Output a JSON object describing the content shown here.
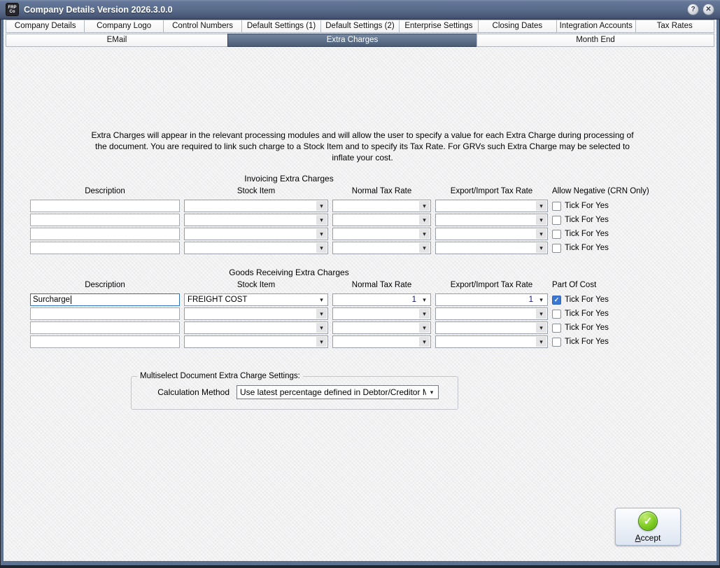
{
  "window": {
    "title": "Company Details Version 2026.3.0.0",
    "icon_line1": "FRP",
    "icon_line2": "Co",
    "help_glyph": "?",
    "close_glyph": "✕"
  },
  "tabs": {
    "row1": [
      "Company Details",
      "Company Logo",
      "Control Numbers",
      "Default Settings (1)",
      "Default Settings (2)",
      "Enterprise Settings",
      "Closing Dates",
      "Integration Accounts",
      "Tax Rates"
    ],
    "row2": [
      "EMail",
      "Extra Charges",
      "Month End"
    ],
    "selected": "Extra Charges"
  },
  "intro": "Extra Charges will appear in the relevant processing modules and will allow the user to specify a value for each Extra Charge during processing of the document. You are required to link such charge to a Stock Item and to specify its Tax Rate. For GRVs such Extra Charge may be selected to inflate your cost.",
  "invoicing": {
    "title": "Invoicing Extra Charges",
    "headers": [
      "Description",
      "Stock Item",
      "Normal Tax Rate",
      "Export/Import Tax Rate",
      "Allow Negative (CRN Only)"
    ],
    "checkbox_label": "Tick For Yes",
    "rows": [
      {
        "description": "",
        "stock_item": "",
        "normal_tax_rate": "",
        "export_import_tax_rate": "",
        "checked": false,
        "focused": false
      },
      {
        "description": "",
        "stock_item": "",
        "normal_tax_rate": "",
        "export_import_tax_rate": "",
        "checked": false,
        "focused": false
      },
      {
        "description": "",
        "stock_item": "",
        "normal_tax_rate": "",
        "export_import_tax_rate": "",
        "checked": false,
        "focused": false
      },
      {
        "description": "",
        "stock_item": "",
        "normal_tax_rate": "",
        "export_import_tax_rate": "",
        "checked": false,
        "focused": false
      }
    ]
  },
  "goods": {
    "title": "Goods Receiving Extra Charges",
    "headers": [
      "Description",
      "Stock Item",
      "Normal Tax Rate",
      "Export/Import Tax Rate",
      "Part Of Cost"
    ],
    "checkbox_label": "Tick For Yes",
    "rows": [
      {
        "description": "Surcharge",
        "stock_item": "FREIGHT COST",
        "normal_tax_rate": "1",
        "export_import_tax_rate": "1",
        "checked": true,
        "focused": true
      },
      {
        "description": "",
        "stock_item": "",
        "normal_tax_rate": "",
        "export_import_tax_rate": "",
        "checked": false,
        "focused": false
      },
      {
        "description": "",
        "stock_item": "",
        "normal_tax_rate": "",
        "export_import_tax_rate": "",
        "checked": false,
        "focused": false
      },
      {
        "description": "",
        "stock_item": "",
        "normal_tax_rate": "",
        "export_import_tax_rate": "",
        "checked": false,
        "focused": false
      }
    ]
  },
  "multiselect": {
    "group_title": "Multiselect Document Extra Charge Settings:",
    "calc_label": "Calculation Method",
    "calc_value": "Use latest percentage defined in Debtor/Creditor Maint"
  },
  "footer": {
    "accept_label": "Accept"
  }
}
